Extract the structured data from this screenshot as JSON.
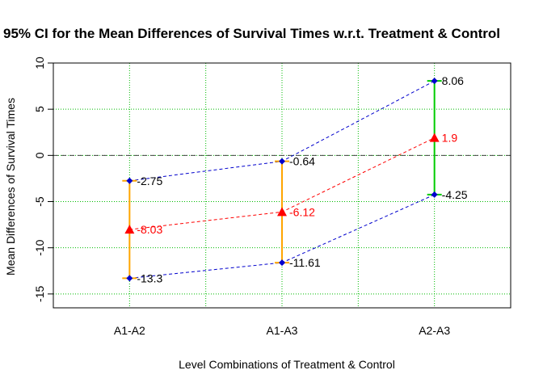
{
  "chart_data": {
    "type": "errorbar",
    "title": "95% CI for the Mean Differences of Survival Times w.r.t. Treatment & Control",
    "xlabel": "Level Combinations of Treatment & Control",
    "ylabel": "Mean Differences of Survival Times",
    "categories": [
      "A1-A2",
      "A1-A3",
      "A2-A3"
    ],
    "xlim": [
      0.5,
      3.5
    ],
    "ylim": [
      -16.5,
      10
    ],
    "yticks": [
      -15,
      -10,
      -5,
      0,
      5,
      10
    ],
    "grid": true,
    "reference_line": 0,
    "series": [
      {
        "role": "upper",
        "values": [
          -2.75,
          -0.64,
          8.06
        ],
        "labels": [
          "-2.75",
          "-0.64",
          "8.06"
        ],
        "color": "#0000cd",
        "label_color": "#000000",
        "marker": "diamond"
      },
      {
        "role": "mean",
        "values": [
          -8.03,
          -6.12,
          1.9
        ],
        "labels": [
          "-8.03",
          "-6.12",
          "1.9"
        ],
        "color": "#ff0000",
        "label_color": "#ff0000",
        "marker": "triangle"
      },
      {
        "role": "lower",
        "values": [
          -13.3,
          -11.61,
          -4.25
        ],
        "labels": [
          "-13.3",
          "-11.61",
          "-4.25"
        ],
        "color": "#0000cd",
        "label_color": "#000000",
        "marker": "diamond"
      }
    ],
    "interval_colors": [
      "#ffa500",
      "#ffa500",
      "#00cc00"
    ],
    "grid_color": "#00bb00"
  }
}
